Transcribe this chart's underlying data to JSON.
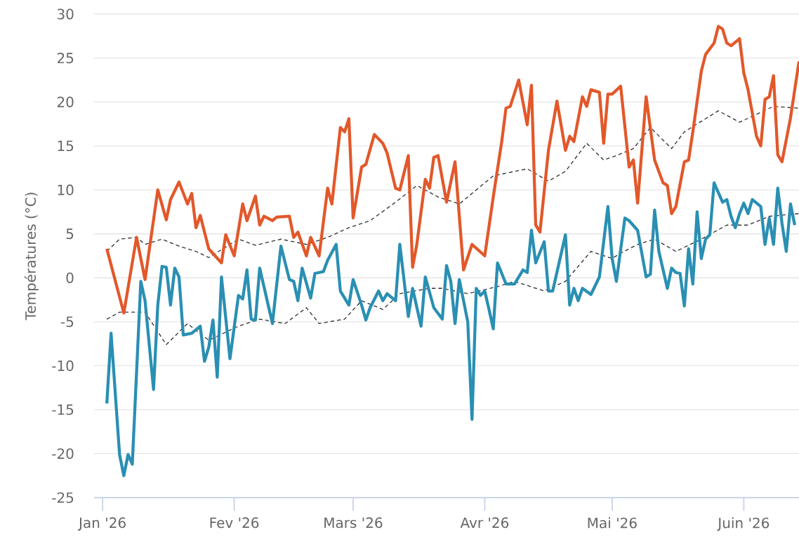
{
  "chart_data": {
    "type": "line",
    "ylabel": "Températures (°C)",
    "xlim": [
      "2025-12-30",
      "2026-06-14"
    ],
    "xticks": [
      {
        "value": "2026-01-01",
        "label": "Jan '26"
      },
      {
        "value": "2026-02-01",
        "label": "Fev '26"
      },
      {
        "value": "2026-03-01",
        "label": "Mars '26"
      },
      {
        "value": "2026-04-01",
        "label": "Avr '26"
      },
      {
        "value": "2026-05-01",
        "label": "Mai '26"
      },
      {
        "value": "2026-06-01",
        "label": "Juin '26"
      }
    ],
    "ylim": [
      -25,
      30
    ],
    "yticks": [
      -25,
      -20,
      -15,
      -10,
      -5,
      0,
      5,
      10,
      15,
      20,
      25,
      30
    ],
    "grid": "y",
    "marker": "none",
    "series": [
      {
        "color": "#333333",
        "line_style": "dashed",
        "x": [
          "2026-01-02",
          "2026-01-05",
          "2026-01-09",
          "2026-01-11",
          "2026-01-15",
          "2026-01-19",
          "2026-01-23",
          "2026-01-26",
          "2026-02-02",
          "2026-02-06",
          "2026-02-12",
          "2026-02-18",
          "2026-02-23",
          "2026-02-28",
          "2026-03-05",
          "2026-03-11",
          "2026-03-16",
          "2026-03-21",
          "2026-03-26",
          "2026-04-03",
          "2026-04-11",
          "2026-04-16",
          "2026-04-20",
          "2026-04-25",
          "2026-04-29",
          "2026-05-02",
          "2026-05-06",
          "2026-05-10",
          "2026-05-15",
          "2026-05-18",
          "2026-05-26",
          "2026-05-31",
          "2026-06-08",
          "2026-06-14"
        ],
        "values": [
          3.0,
          4.4,
          4.6,
          3.8,
          4.4,
          3.6,
          3.0,
          2.3,
          4.4,
          3.7,
          4.4,
          3.8,
          4.6,
          5.7,
          6.5,
          8.6,
          10.5,
          9.2,
          8.4,
          11.6,
          12.4,
          11.0,
          12.1,
          15.3,
          13.4,
          13.9,
          14.7,
          17.1,
          14.7,
          16.6,
          19.0,
          17.7,
          19.5,
          19.3
        ]
      },
      {
        "color": "#333333",
        "line_style": "dashed",
        "x": [
          "2026-01-02",
          "2026-01-05",
          "2026-01-11",
          "2026-01-16",
          "2026-01-21",
          "2026-01-26",
          "2026-02-02",
          "2026-02-07",
          "2026-02-13",
          "2026-02-18",
          "2026-02-21",
          "2026-02-27",
          "2026-03-03",
          "2026-03-08",
          "2026-03-12",
          "2026-03-19",
          "2026-03-22",
          "2026-03-28",
          "2026-04-04",
          "2026-04-08",
          "2026-04-15",
          "2026-04-20",
          "2026-04-26",
          "2026-05-01",
          "2026-05-03",
          "2026-05-07",
          "2026-05-11",
          "2026-05-16",
          "2026-05-22",
          "2026-05-28",
          "2026-06-02",
          "2026-06-07",
          "2026-06-14"
        ],
        "values": [
          -4.7,
          -3.9,
          -3.9,
          -7.6,
          -5.2,
          -7.1,
          -5.5,
          -4.7,
          -5.2,
          -3.4,
          -5.2,
          -4.7,
          -2.6,
          -3.6,
          -1.8,
          -1.2,
          -1.2,
          -1.8,
          -1.0,
          -0.4,
          -1.5,
          -0.4,
          3.0,
          2.2,
          2.8,
          3.8,
          4.4,
          3.0,
          4.4,
          6.0,
          6.0,
          7.0,
          7.3
        ]
      },
      {
        "color": "#e2582a",
        "line_style": "solid",
        "x": [
          "2026-01-02",
          "2026-01-06",
          "2026-01-09",
          "2026-01-11",
          "2026-01-14",
          "2026-01-16",
          "2026-01-17",
          "2026-01-19",
          "2026-01-21",
          "2026-01-22",
          "2026-01-23",
          "2026-01-24",
          "2026-01-26",
          "2026-01-29",
          "2026-01-30",
          "2026-02-01",
          "2026-02-03",
          "2026-02-04",
          "2026-02-06",
          "2026-02-07",
          "2026-02-08",
          "2026-02-10",
          "2026-02-11",
          "2026-02-14",
          "2026-02-15",
          "2026-02-16",
          "2026-02-18",
          "2026-02-19",
          "2026-02-21",
          "2026-02-23",
          "2026-02-24",
          "2026-02-26",
          "2026-02-27",
          "2026-02-28",
          "2026-03-01",
          "2026-03-03",
          "2026-03-04",
          "2026-03-06",
          "2026-03-08",
          "2026-03-09",
          "2026-03-11",
          "2026-03-12",
          "2026-03-14",
          "2026-03-15",
          "2026-03-16",
          "2026-03-18",
          "2026-03-19",
          "2026-03-20",
          "2026-03-21",
          "2026-03-23",
          "2026-03-25",
          "2026-03-27",
          "2026-03-29",
          "2026-04-01",
          "2026-04-03",
          "2026-04-05",
          "2026-04-06",
          "2026-04-07",
          "2026-04-09",
          "2026-04-11",
          "2026-04-12",
          "2026-04-13",
          "2026-04-14",
          "2026-04-16",
          "2026-04-18",
          "2026-04-20",
          "2026-04-21",
          "2026-04-22",
          "2026-04-24",
          "2026-04-25",
          "2026-04-26",
          "2026-04-28",
          "2026-04-29",
          "2026-04-30",
          "2026-05-01",
          "2026-05-03",
          "2026-05-05",
          "2026-05-06",
          "2026-05-07",
          "2026-05-09",
          "2026-05-11",
          "2026-05-13",
          "2026-05-14",
          "2026-05-15",
          "2026-05-16",
          "2026-05-18",
          "2026-05-19",
          "2026-05-20",
          "2026-05-22",
          "2026-05-23",
          "2026-05-25",
          "2026-05-26",
          "2026-05-27",
          "2026-05-28",
          "2026-05-29",
          "2026-05-31",
          "2026-06-01",
          "2026-06-02",
          "2026-06-04",
          "2026-06-05",
          "2026-06-06",
          "2026-06-07",
          "2026-06-08",
          "2026-06-09",
          "2026-06-10",
          "2026-06-12",
          "2026-06-14"
        ],
        "values": [
          3.3,
          -4.0,
          4.6,
          -0.2,
          10.0,
          6.6,
          8.9,
          10.9,
          8.4,
          9.6,
          5.7,
          7.1,
          3.3,
          1.7,
          4.9,
          2.5,
          8.4,
          6.5,
          9.3,
          6.0,
          7.0,
          6.5,
          6.9,
          7.0,
          4.6,
          5.2,
          2.5,
          4.6,
          2.5,
          10.2,
          8.4,
          17.1,
          16.6,
          18.1,
          6.8,
          12.6,
          12.9,
          16.3,
          15.3,
          14.2,
          10.2,
          10.0,
          13.9,
          1.2,
          3.8,
          11.2,
          10.2,
          13.7,
          13.9,
          8.6,
          13.2,
          0.9,
          3.8,
          2.5,
          9.2,
          15.5,
          19.3,
          19.5,
          22.5,
          17.4,
          21.9,
          6.0,
          5.2,
          14.5,
          20.1,
          14.5,
          16.1,
          15.5,
          20.6,
          19.5,
          21.4,
          21.1,
          15.3,
          20.9,
          20.9,
          21.8,
          12.6,
          13.4,
          8.5,
          20.6,
          13.4,
          10.8,
          10.5,
          7.3,
          8.1,
          13.2,
          13.4,
          16.6,
          23.5,
          25.4,
          26.7,
          28.6,
          28.3,
          26.7,
          26.4,
          27.2,
          23.3,
          21.4,
          16.1,
          15.0,
          20.3,
          20.6,
          23.0,
          14.0,
          13.2,
          18.2,
          24.6
        ]
      },
      {
        "color": "#2a8fb3",
        "line_style": "solid",
        "x": [
          "2026-01-02",
          "2026-01-03",
          "2026-01-05",
          "2026-01-06",
          "2026-01-07",
          "2026-01-08",
          "2026-01-10",
          "2026-01-11",
          "2026-01-13",
          "2026-01-14",
          "2026-01-15",
          "2026-01-16",
          "2026-01-17",
          "2026-01-18",
          "2026-01-19",
          "2026-01-20",
          "2026-01-22",
          "2026-01-24",
          "2026-01-25",
          "2026-01-26",
          "2026-01-27",
          "2026-01-28",
          "2026-01-29",
          "2026-01-31",
          "2026-02-02",
          "2026-02-03",
          "2026-02-04",
          "2026-02-05",
          "2026-02-06",
          "2026-02-07",
          "2026-02-10",
          "2026-02-12",
          "2026-02-14",
          "2026-02-15",
          "2026-02-16",
          "2026-02-17",
          "2026-02-19",
          "2026-02-20",
          "2026-02-22",
          "2026-02-23",
          "2026-02-25",
          "2026-02-26",
          "2026-02-28",
          "2026-03-01",
          "2026-03-03",
          "2026-03-04",
          "2026-03-05",
          "2026-03-07",
          "2026-03-08",
          "2026-03-09",
          "2026-03-11",
          "2026-03-12",
          "2026-03-14",
          "2026-03-15",
          "2026-03-17",
          "2026-03-18",
          "2026-03-20",
          "2026-03-22",
          "2026-03-23",
          "2026-03-24",
          "2026-03-25",
          "2026-03-26",
          "2026-03-28",
          "2026-03-29",
          "2026-03-30",
          "2026-03-31",
          "2026-04-01",
          "2026-04-02",
          "2026-04-03",
          "2026-04-04",
          "2026-04-06",
          "2026-04-08",
          "2026-04-10",
          "2026-04-11",
          "2026-04-12",
          "2026-04-13",
          "2026-04-15",
          "2026-04-16",
          "2026-04-17",
          "2026-04-20",
          "2026-04-21",
          "2026-04-22",
          "2026-04-23",
          "2026-04-24",
          "2026-04-26",
          "2026-04-28",
          "2026-04-30",
          "2026-05-01",
          "2026-05-02",
          "2026-05-04",
          "2026-05-05",
          "2026-05-07",
          "2026-05-09",
          "2026-05-10",
          "2026-05-11",
          "2026-05-12",
          "2026-05-14",
          "2026-05-15",
          "2026-05-16",
          "2026-05-17",
          "2026-05-18",
          "2026-05-19",
          "2026-05-20",
          "2026-05-21",
          "2026-05-22",
          "2026-05-23",
          "2026-05-24",
          "2026-05-25",
          "2026-05-27",
          "2026-05-28",
          "2026-05-29",
          "2026-05-30",
          "2026-05-31",
          "2026-06-01",
          "2026-06-02",
          "2026-06-03",
          "2026-06-05",
          "2026-06-06",
          "2026-06-07",
          "2026-06-08",
          "2026-06-09",
          "2026-06-10",
          "2026-06-11",
          "2026-06-12",
          "2026-06-13"
        ],
        "values": [
          -14.3,
          -6.3,
          -20.1,
          -22.5,
          -20.1,
          -21.2,
          -0.4,
          -2.6,
          -12.7,
          -3.1,
          1.3,
          1.2,
          -3.1,
          1.1,
          0.1,
          -6.5,
          -6.3,
          -5.5,
          -9.5,
          -7.9,
          -4.8,
          -11.3,
          0.1,
          -9.2,
          -2.0,
          -2.4,
          0.9,
          -4.7,
          -4.8,
          1.1,
          -5.2,
          3.6,
          -0.2,
          -0.4,
          -2.6,
          1.1,
          -2.3,
          0.5,
          0.7,
          2.0,
          3.8,
          -1.5,
          -3.1,
          -0.2,
          -3.1,
          -4.8,
          -3.4,
          -1.5,
          -2.6,
          -1.8,
          -2.6,
          3.8,
          -4.4,
          -1.2,
          -5.5,
          0.1,
          -3.4,
          -4.7,
          1.4,
          -0.4,
          -5.2,
          -0.2,
          -5.0,
          -16.1,
          -1.2,
          -2.0,
          -1.5,
          -3.6,
          -5.8,
          1.7,
          -0.7,
          -0.7,
          0.9,
          0.6,
          5.4,
          1.7,
          4.1,
          -1.5,
          -1.5,
          4.9,
          -3.1,
          -1.2,
          -2.6,
          -1.2,
          -1.9,
          0.1,
          8.1,
          2.2,
          -0.4,
          6.8,
          6.5,
          5.4,
          0.1,
          0.4,
          7.7,
          3.0,
          -1.2,
          1.1,
          0.6,
          0.5,
          -3.2,
          3.3,
          -0.7,
          7.5,
          2.2,
          4.4,
          4.9,
          10.8,
          8.6,
          8.9,
          7.0,
          5.7,
          7.3,
          8.5,
          7.3,
          8.9,
          8.1,
          3.8,
          6.8,
          3.8,
          10.2,
          6.2,
          3.0,
          8.4,
          6.0
        ]
      }
    ]
  }
}
